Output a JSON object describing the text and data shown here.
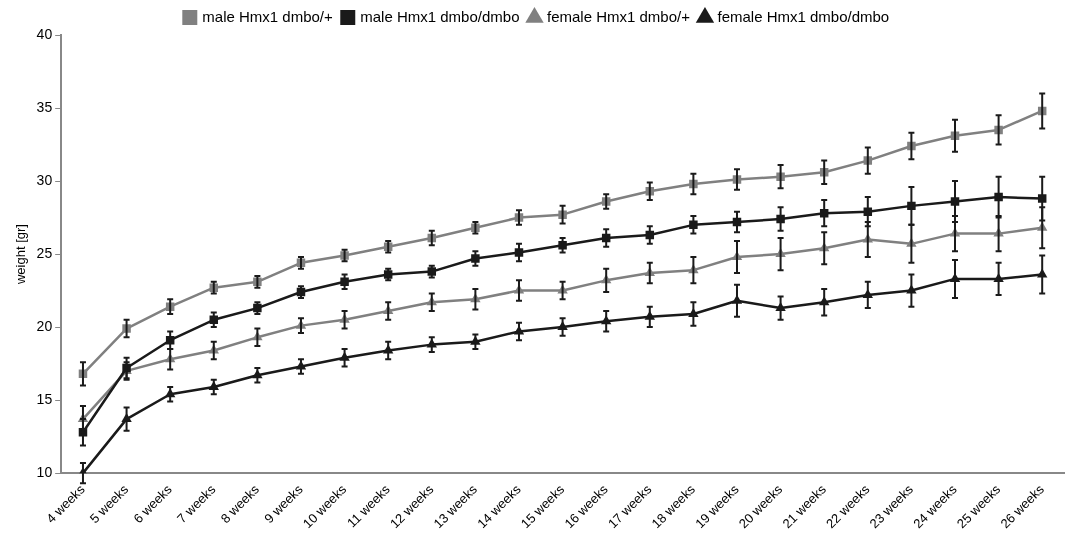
{
  "chart_data": {
    "type": "line",
    "ylabel": "weight [gr]",
    "categories": [
      "4 weeks",
      "5 weeks",
      "6 weeks",
      "7 weeks",
      "8 weeks",
      "9 weeks",
      "10 weeks",
      "11 weeks",
      "12 weeks",
      "13 weeks",
      "14 weeks",
      "15 weeks",
      "16 weeks",
      "17 weeks",
      "18 weeks",
      "19 weeks",
      "20 weeks",
      "21 weeks",
      "22 weeks",
      "23 weeks",
      "24 weeks",
      "25 weeks",
      "26 weeks"
    ],
    "ylim": [
      10,
      40
    ],
    "yticks": [
      10,
      15,
      20,
      25,
      30,
      35,
      40
    ],
    "grid": false,
    "legend": "top",
    "series": [
      {
        "name": "male Hmx1 dmbo/+",
        "color": "#808080",
        "marker": "square",
        "values": [
          16.8,
          19.9,
          21.4,
          22.7,
          23.1,
          24.4,
          24.9,
          25.5,
          26.1,
          26.8,
          27.5,
          27.7,
          28.6,
          29.3,
          29.8,
          30.1,
          30.3,
          30.6,
          31.4,
          32.4,
          33.1,
          33.5,
          34.8
        ],
        "errors": [
          0.8,
          0.6,
          0.5,
          0.4,
          0.4,
          0.4,
          0.4,
          0.4,
          0.5,
          0.4,
          0.5,
          0.6,
          0.5,
          0.6,
          0.7,
          0.7,
          0.8,
          0.8,
          0.9,
          0.9,
          1.1,
          1.0,
          1.2
        ]
      },
      {
        "name": "male Hmx1 dmbo/dmbo",
        "color": "#1a1a1a",
        "marker": "square",
        "values": [
          12.8,
          17.2,
          19.1,
          20.5,
          21.3,
          22.4,
          23.1,
          23.6,
          23.8,
          24.7,
          25.1,
          25.6,
          26.1,
          26.3,
          27.0,
          27.2,
          27.4,
          27.8,
          27.9,
          28.3,
          28.6,
          28.9,
          28.8
        ],
        "errors": [
          0.9,
          0.7,
          0.6,
          0.5,
          0.4,
          0.4,
          0.5,
          0.4,
          0.4,
          0.5,
          0.6,
          0.5,
          0.6,
          0.6,
          0.6,
          0.7,
          0.8,
          0.9,
          1.0,
          1.3,
          1.4,
          1.4,
          1.5
        ]
      },
      {
        "name": "female Hmx1 dmbo/+",
        "color": "#808080",
        "marker": "triangle",
        "values": [
          13.7,
          17.0,
          17.8,
          18.4,
          19.3,
          20.1,
          20.5,
          21.1,
          21.7,
          21.9,
          22.5,
          22.5,
          23.2,
          23.7,
          23.9,
          24.8,
          25.0,
          25.4,
          26.0,
          25.7,
          26.4,
          26.4,
          26.8
        ],
        "errors": [
          0.9,
          0.6,
          0.7,
          0.6,
          0.6,
          0.5,
          0.6,
          0.6,
          0.6,
          0.7,
          0.7,
          0.6,
          0.8,
          0.7,
          0.9,
          1.1,
          1.1,
          1.1,
          1.2,
          1.3,
          1.2,
          1.2,
          1.4
        ]
      },
      {
        "name": "female Hmx1 dmbo/dmbo",
        "color": "#1a1a1a",
        "marker": "triangle",
        "values": [
          10.0,
          13.7,
          15.4,
          15.9,
          16.7,
          17.3,
          17.9,
          18.4,
          18.8,
          19.0,
          19.7,
          20.0,
          20.4,
          20.7,
          20.9,
          21.8,
          21.3,
          21.7,
          22.2,
          22.5,
          23.3,
          23.3,
          23.6
        ],
        "errors": [
          0.7,
          0.8,
          0.5,
          0.5,
          0.5,
          0.5,
          0.6,
          0.6,
          0.5,
          0.5,
          0.6,
          0.6,
          0.7,
          0.7,
          0.8,
          1.1,
          0.8,
          0.9,
          0.9,
          1.1,
          1.3,
          1.1,
          1.3
        ]
      }
    ]
  }
}
